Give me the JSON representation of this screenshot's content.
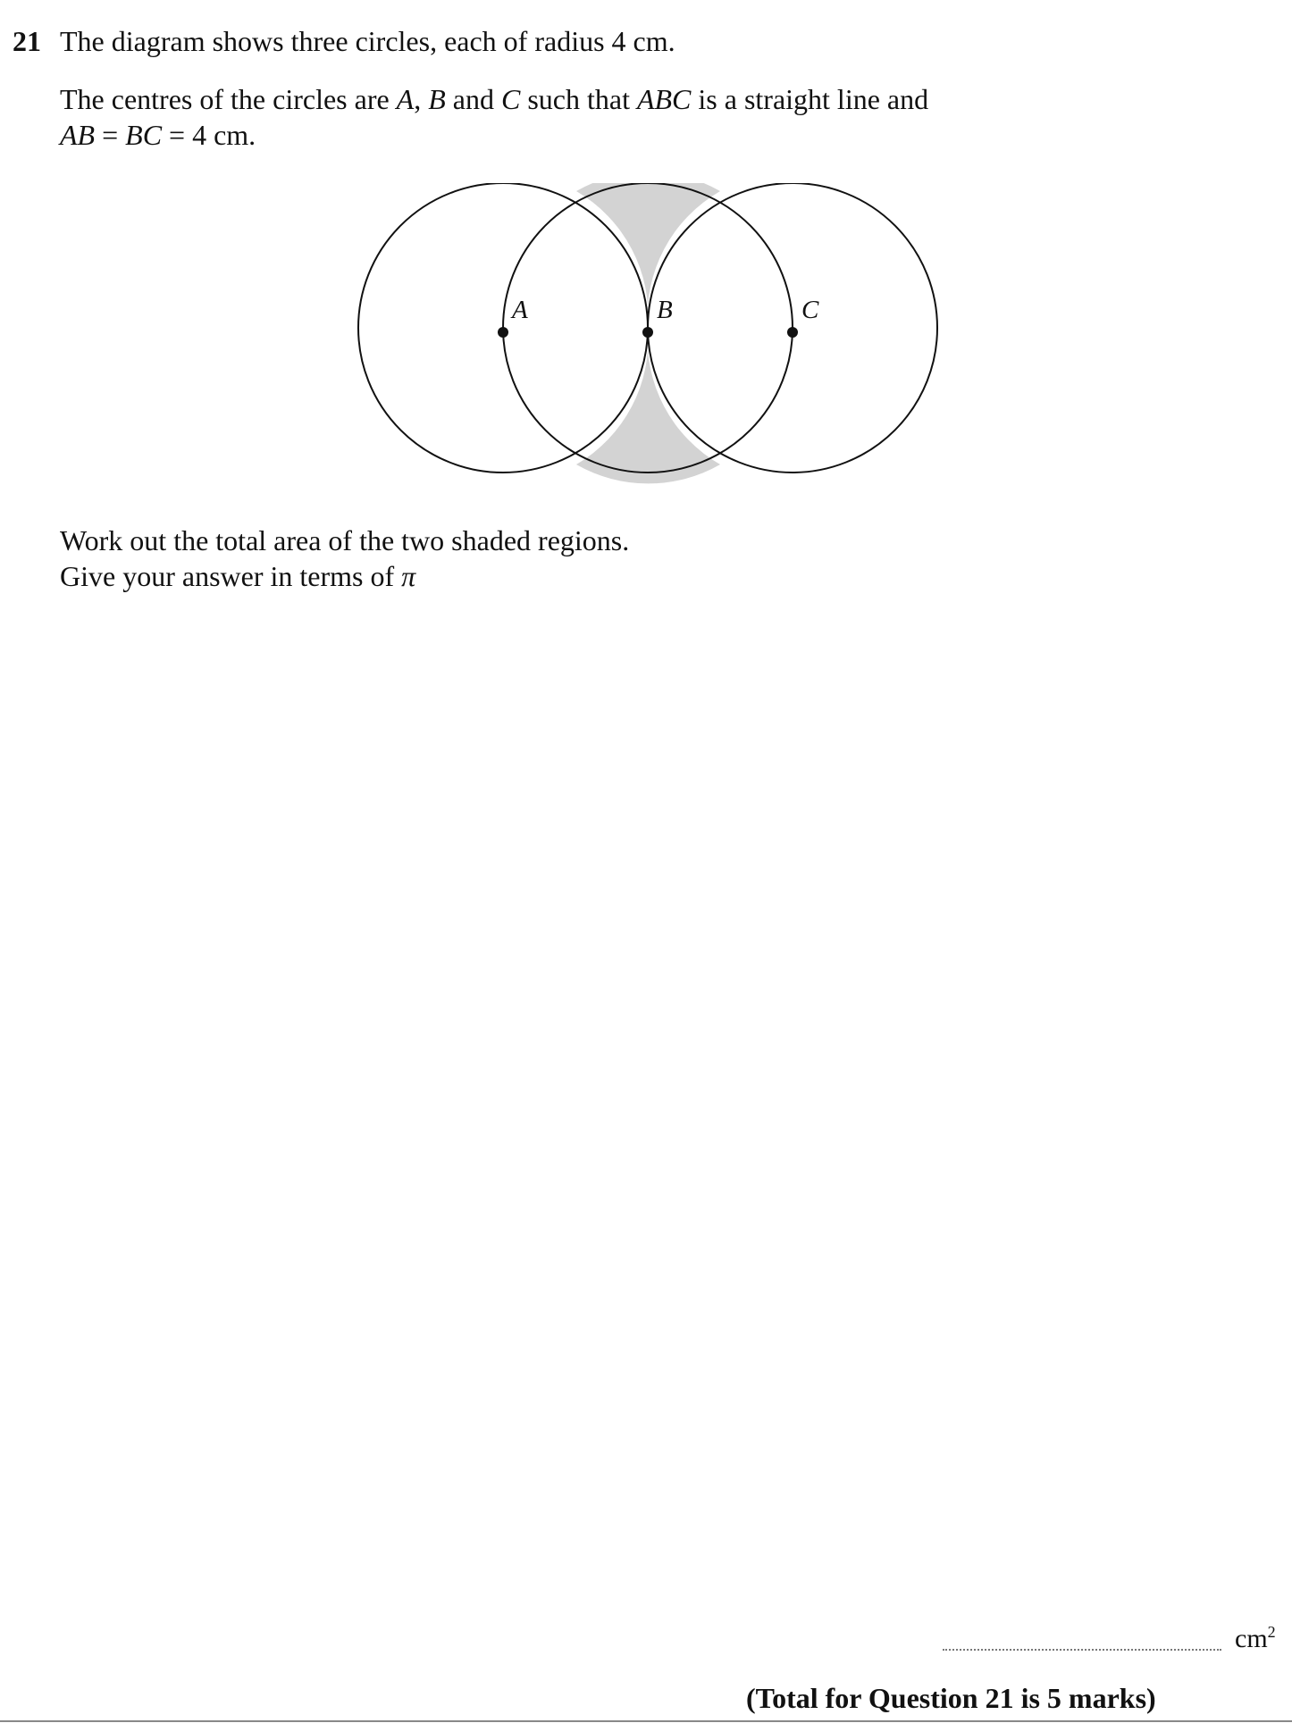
{
  "question": {
    "number": "21",
    "line1": "The diagram shows three circles, each of radius 4 cm.",
    "line2_a": "The centres of the circles are ",
    "line2_A": "A",
    "line2_b": ", ",
    "line2_B": "B",
    "line2_c": " and ",
    "line2_C": "C",
    "line2_d": " such that ",
    "line2_ABC": "ABC",
    "line2_e": " is a straight line and",
    "line3_AB": "AB",
    "line3_a": " = ",
    "line3_BC": "BC",
    "line3_b": " = 4 cm.",
    "line4": "Work out the total area of the two shaded regions.",
    "line5_a": "Give your answer in terms of ",
    "line5_pi": "π"
  },
  "diagram": {
    "label_a": "A",
    "label_b": "B",
    "label_c": "C",
    "shade_color": "#d3d3d3",
    "stroke_color": "#111111"
  },
  "answer": {
    "unit": "cm",
    "unit_power": "2"
  },
  "total": "(Total for Question 21 is 5 marks)"
}
